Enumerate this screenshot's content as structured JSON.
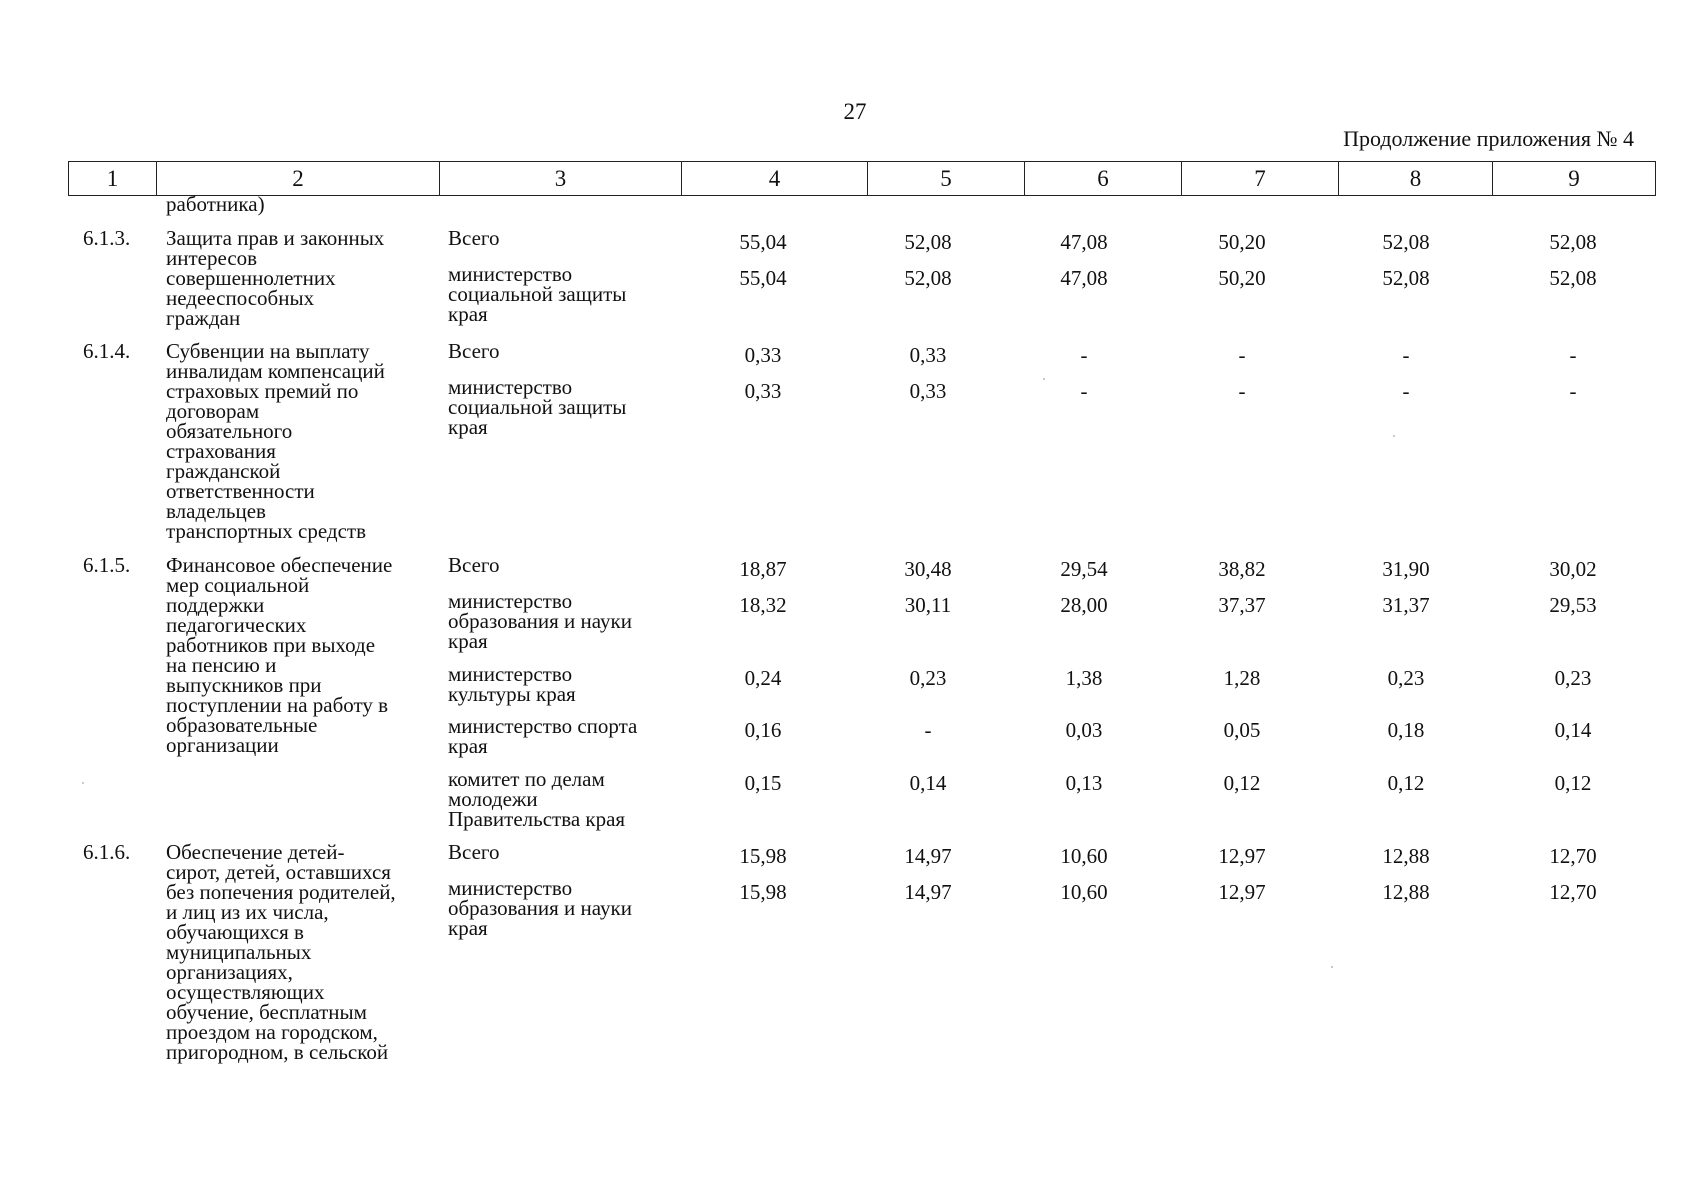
{
  "page_number": "27",
  "appendix_title": "Продолжение приложения № 4",
  "header_columns": [
    "1",
    "2",
    "3",
    "4",
    "5",
    "6",
    "7",
    "8",
    "9"
  ],
  "continuation_text": "работника)",
  "sections": [
    {
      "code": "6.1.3.",
      "name_lines": [
        "Защита прав и законных",
        "интересов",
        "совершеннолетних",
        "недееспособных",
        "граждан"
      ],
      "rows": [
        {
          "exec": [
            "Всего"
          ],
          "values": [
            "55,04",
            "52,08",
            "47,08",
            "50,20",
            "52,08",
            "52,08"
          ]
        },
        {
          "exec": [
            "министерство",
            "социальной защиты",
            "края"
          ],
          "values": [
            "55,04",
            "52,08",
            "47,08",
            "50,20",
            "52,08",
            "52,08"
          ]
        }
      ]
    },
    {
      "code": "6.1.4.",
      "name_lines": [
        "Субвенции на выплату",
        "инвалидам компенсаций",
        "страховых премий по",
        "договорам",
        "обязательного",
        "страхования",
        "гражданской",
        "ответственности",
        "владельцев",
        "транспортных средств"
      ],
      "rows": [
        {
          "exec": [
            "Всего"
          ],
          "values": [
            "0,33",
            "0,33",
            "-",
            "-",
            "-",
            "-"
          ]
        },
        {
          "exec": [
            "министерство",
            "социальной защиты",
            "края"
          ],
          "values": [
            "0,33",
            "0,33",
            "-",
            "-",
            "-",
            "-"
          ]
        }
      ]
    },
    {
      "code": "6.1.5.",
      "name_lines": [
        "Финансовое обеспечение",
        "мер социальной",
        "поддержки",
        "педагогических",
        "работников при выходе",
        "на пенсию и",
        "выпускников при",
        "поступлении на работу в",
        "образовательные",
        "организации"
      ],
      "rows": [
        {
          "exec": [
            "Всего"
          ],
          "values": [
            "18,87",
            "30,48",
            "29,54",
            "38,82",
            "31,90",
            "30,02"
          ]
        },
        {
          "exec": [
            "министерство",
            "образования и науки",
            "края"
          ],
          "values": [
            "18,32",
            "30,11",
            "28,00",
            "37,37",
            "31,37",
            "29,53"
          ]
        },
        {
          "exec": [
            "министерство",
            "культуры края"
          ],
          "values": [
            "0,24",
            "0,23",
            "1,38",
            "1,28",
            "0,23",
            "0,23"
          ]
        },
        {
          "exec": [
            "министерство спорта",
            "края"
          ],
          "values": [
            "0,16",
            "-",
            "0,03",
            "0,05",
            "0,18",
            "0,14"
          ]
        },
        {
          "exec": [
            "комитет по делам",
            "молодежи",
            "Правительства края"
          ],
          "values": [
            "0,15",
            "0,14",
            "0,13",
            "0,12",
            "0,12",
            "0,12"
          ]
        }
      ]
    },
    {
      "code": "6.1.6.",
      "name_lines": [
        "Обеспечение детей-",
        "сирот, детей, оставшихся",
        "без попечения родителей,",
        "и лиц из их числа,",
        "обучающихся в",
        "муниципальных",
        "организациях,",
        "осуществляющих",
        "обучение, бесплатным",
        "проездом на городском,",
        "пригородном, в сельской"
      ],
      "rows": [
        {
          "exec": [
            "Всего"
          ],
          "values": [
            "15,98",
            "14,97",
            "10,60",
            "12,97",
            "12,88",
            "12,70"
          ]
        },
        {
          "exec": [
            "министерство",
            "образования и науки",
            "края"
          ],
          "values": [
            "15,98",
            "14,97",
            "10,60",
            "12,97",
            "12,88",
            "12,70"
          ]
        }
      ]
    }
  ]
}
